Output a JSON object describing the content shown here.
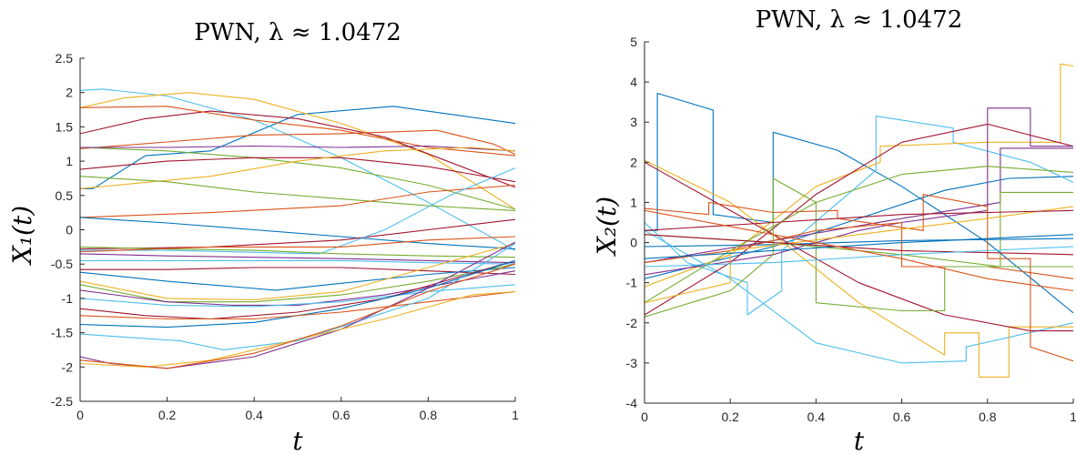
{
  "chart_data": [
    {
      "type": "line",
      "title": "PWN, λ ≈ 1.0472",
      "xlabel": "t",
      "ylabel": "X₁(t)",
      "xlim": [
        0,
        1
      ],
      "ylim": [
        -2.5,
        2.5
      ],
      "xticks": [
        "0",
        "0.2",
        "0.4",
        "0.6",
        "0.8",
        "1"
      ],
      "yticks": [
        "-2.5",
        "-2",
        "-1.5",
        "-1",
        "-0.5",
        "0",
        "0.5",
        "1",
        "1.5",
        "2",
        "2.5"
      ],
      "grid": false,
      "series": [
        {
          "color": "#0072BD",
          "x": [
            0,
            0.03,
            0.15,
            0.3,
            0.5,
            0.72,
            1
          ],
          "y": [
            0.6,
            0.6,
            1.08,
            1.15,
            1.68,
            1.8,
            1.55
          ]
        },
        {
          "color": "#4DBEEE",
          "x": [
            0,
            0.05,
            0.2,
            0.4,
            0.6,
            0.8,
            1
          ],
          "y": [
            2.03,
            2.05,
            1.95,
            1.6,
            1.05,
            0.4,
            -0.3
          ]
        },
        {
          "color": "#EDB120",
          "x": [
            0,
            0.1,
            0.25,
            0.4,
            0.6,
            0.8,
            1
          ],
          "y": [
            1.78,
            1.92,
            2.0,
            1.9,
            1.55,
            1.1,
            0.3
          ]
        },
        {
          "color": "#A2142F",
          "x": [
            0,
            0.15,
            0.3,
            0.5,
            0.7,
            1
          ],
          "y": [
            1.4,
            1.62,
            1.73,
            1.62,
            1.35,
            0.62
          ]
        },
        {
          "color": "#D95319",
          "x": [
            0,
            0.2,
            0.4,
            0.6,
            0.8,
            1
          ],
          "y": [
            1.78,
            1.8,
            1.6,
            1.45,
            1.2,
            1.08
          ]
        },
        {
          "color": "#D95319",
          "x": [
            0,
            0.2,
            0.4,
            0.6,
            0.82,
            0.95,
            1
          ],
          "y": [
            1.18,
            1.28,
            1.38,
            1.4,
            1.45,
            1.25,
            1.1
          ]
        },
        {
          "color": "#77AC30",
          "x": [
            0,
            0.2,
            0.4,
            0.6,
            0.8,
            1
          ],
          "y": [
            1.2,
            1.15,
            1.05,
            0.9,
            0.65,
            0.3
          ]
        },
        {
          "color": "#7E2F8E",
          "x": [
            0,
            0.2,
            0.4,
            0.6,
            0.8,
            1
          ],
          "y": [
            1.2,
            1.2,
            1.22,
            1.2,
            1.22,
            1.15
          ]
        },
        {
          "color": "#A2142F",
          "x": [
            0,
            0.2,
            0.4,
            0.6,
            0.8,
            1
          ],
          "y": [
            0.88,
            1.0,
            1.05,
            1.05,
            0.92,
            0.7
          ]
        },
        {
          "color": "#EDB120",
          "x": [
            0,
            0.3,
            0.5,
            0.7,
            0.9,
            1
          ],
          "y": [
            0.6,
            0.78,
            1.0,
            1.15,
            1.2,
            1.15
          ]
        },
        {
          "color": "#77AC30",
          "x": [
            0,
            0.2,
            0.4,
            0.6,
            0.8,
            1
          ],
          "y": [
            0.78,
            0.7,
            0.55,
            0.45,
            0.35,
            0.28
          ]
        },
        {
          "color": "#D95319",
          "x": [
            0,
            0.3,
            0.6,
            0.8,
            1
          ],
          "y": [
            0.18,
            0.25,
            0.35,
            0.55,
            0.65
          ]
        },
        {
          "color": "#0072BD",
          "x": [
            0,
            0.2,
            0.4,
            0.6,
            0.8,
            1
          ],
          "y": [
            0.18,
            0.1,
            0.0,
            -0.1,
            -0.2,
            -0.28
          ]
        },
        {
          "color": "#A2142F",
          "x": [
            0,
            0.3,
            0.6,
            0.8,
            1
          ],
          "y": [
            -0.28,
            -0.25,
            -0.15,
            0.0,
            0.15
          ]
        },
        {
          "color": "#4DBEEE",
          "x": [
            0,
            0.2,
            0.55,
            0.7,
            0.85,
            1
          ],
          "y": [
            -0.3,
            -0.3,
            -0.35,
            0.0,
            0.5,
            0.9
          ]
        },
        {
          "color": "#77AC30",
          "x": [
            0,
            0.2,
            0.4,
            0.6,
            0.8,
            1
          ],
          "y": [
            -0.25,
            -0.28,
            -0.3,
            -0.35,
            -0.38,
            -0.4
          ]
        },
        {
          "color": "#D95319",
          "x": [
            0,
            0.3,
            0.6,
            0.8,
            1
          ],
          "y": [
            -0.32,
            -0.25,
            -0.25,
            -0.15,
            -0.1
          ]
        },
        {
          "color": "#7E2F8E",
          "x": [
            0,
            0.2,
            0.4,
            0.6,
            0.8,
            1
          ],
          "y": [
            -0.35,
            -0.38,
            -0.4,
            -0.42,
            -0.45,
            -0.48
          ]
        },
        {
          "color": "#4DBEEE",
          "x": [
            0,
            0.3,
            0.6,
            0.8,
            1
          ],
          "y": [
            -0.45,
            -0.45,
            -0.45,
            -0.48,
            -0.5
          ]
        },
        {
          "color": "#A2142F",
          "x": [
            0,
            0.2,
            0.4,
            0.6,
            0.8,
            1
          ],
          "y": [
            -0.58,
            -0.58,
            -0.55,
            -0.55,
            -0.6,
            -0.65
          ]
        },
        {
          "color": "#0072BD",
          "x": [
            0,
            0.2,
            0.45,
            0.6,
            0.8,
            1
          ],
          "y": [
            -0.62,
            -0.75,
            -0.88,
            -0.78,
            -0.65,
            -0.55
          ]
        },
        {
          "color": "#EDB120",
          "x": [
            0,
            0.2,
            0.4,
            0.6,
            0.8,
            1
          ],
          "y": [
            -0.75,
            -1.0,
            -1.02,
            -0.9,
            -0.55,
            -0.2
          ]
        },
        {
          "color": "#77AC30",
          "x": [
            0,
            0.2,
            0.4,
            0.6,
            0.8,
            1
          ],
          "y": [
            -0.8,
            -1.05,
            -1.05,
            -0.95,
            -0.75,
            -0.5
          ]
        },
        {
          "color": "#7E2F8E",
          "x": [
            0,
            0.2,
            0.35,
            0.5,
            0.7,
            1
          ],
          "y": [
            -0.88,
            -1.05,
            -1.1,
            -1.1,
            -0.95,
            -0.6
          ]
        },
        {
          "color": "#4DBEEE",
          "x": [
            0,
            0.2,
            0.4,
            0.6,
            0.8,
            1
          ],
          "y": [
            -1.0,
            -1.1,
            -1.12,
            -1.05,
            -0.9,
            -0.8
          ]
        },
        {
          "color": "#A2142F",
          "x": [
            0,
            0.15,
            0.3,
            0.5,
            0.7,
            1
          ],
          "y": [
            -1.15,
            -1.25,
            -1.3,
            -1.2,
            -1.0,
            -0.45
          ]
        },
        {
          "color": "#0072BD",
          "x": [
            0,
            0.2,
            0.4,
            0.6,
            0.8,
            1
          ],
          "y": [
            -1.38,
            -1.42,
            -1.35,
            -1.15,
            -0.85,
            -0.45
          ]
        },
        {
          "color": "#D95319",
          "x": [
            0,
            0.2,
            0.4,
            0.6,
            0.8,
            1
          ],
          "y": [
            -1.25,
            -1.3,
            -1.3,
            -1.2,
            -1.05,
            -0.9
          ]
        },
        {
          "color": "#4DBEEE",
          "x": [
            0,
            0.23,
            0.33,
            0.5,
            0.8,
            1
          ],
          "y": [
            -1.52,
            -1.62,
            -1.75,
            -1.62,
            -1.0,
            -0.2
          ]
        },
        {
          "color": "#7E2F8E",
          "x": [
            0,
            0.07,
            0.2,
            0.4,
            0.6,
            0.8,
            1
          ],
          "y": [
            -1.85,
            -1.95,
            -2.02,
            -1.85,
            -1.45,
            -0.85,
            -0.18
          ]
        },
        {
          "color": "#EDB120",
          "x": [
            0,
            0.15,
            0.3,
            0.5,
            0.7,
            0.9,
            1
          ],
          "y": [
            -1.95,
            -2.0,
            -1.9,
            -1.6,
            -1.3,
            -0.95,
            -0.9
          ]
        },
        {
          "color": "#D95319",
          "x": [
            0,
            0.2,
            0.4,
            0.6,
            0.8,
            1
          ],
          "y": [
            -1.9,
            -2.02,
            -1.8,
            -1.4,
            -0.9,
            -0.5
          ]
        }
      ]
    },
    {
      "type": "line",
      "title": "PWN, λ ≈ 1.0472",
      "xlabel": "t",
      "ylabel": "X₂(t)",
      "xlim": [
        0,
        1
      ],
      "ylim": [
        -4,
        5
      ],
      "xticks": [
        "0",
        "0.2",
        "0.4",
        "0.6",
        "0.8",
        "1"
      ],
      "yticks": [
        "-4",
        "-3",
        "-2",
        "-1",
        "0",
        "1",
        "2",
        "3",
        "4",
        "5"
      ],
      "grid": false,
      "series": [
        {
          "color": "#0072BD",
          "x": [
            0,
            0.03,
            0.03,
            0.16,
            0.16,
            0.3,
            0.3,
            0.45,
            0.6,
            0.8,
            1
          ],
          "y": [
            0.3,
            0.3,
            3.72,
            3.3,
            0.7,
            0.5,
            2.75,
            2.3,
            1.4,
            0.0,
            -1.75
          ]
        },
        {
          "color": "#0072BD",
          "x": [
            0,
            0.3,
            0.5,
            0.7,
            0.85,
            1
          ],
          "y": [
            -0.9,
            -0.1,
            0.6,
            1.3,
            1.6,
            1.65
          ]
        },
        {
          "color": "#0072BD",
          "x": [
            0,
            0.3,
            0.6,
            1
          ],
          "y": [
            -0.1,
            -0.05,
            0.05,
            0.1
          ]
        },
        {
          "color": "#4DBEEE",
          "x": [
            0,
            0.1,
            0.24,
            0.24,
            0.32,
            0.32,
            0.54,
            0.54,
            0.72,
            0.72,
            0.9,
            1
          ],
          "y": [
            0.5,
            -0.5,
            -1.0,
            -1.8,
            -1.2,
            -0.2,
            1.8,
            3.15,
            2.85,
            2.5,
            2.0,
            1.5
          ]
        },
        {
          "color": "#4DBEEE",
          "x": [
            0,
            0.2,
            0.4,
            0.6,
            0.75,
            0.75,
            1
          ],
          "y": [
            0.3,
            -0.9,
            -2.5,
            -3.0,
            -2.95,
            -2.6,
            -2.0
          ]
        },
        {
          "color": "#EDB120",
          "x": [
            0,
            0.2,
            0.3,
            0.5,
            0.7,
            0.7,
            0.78,
            0.78,
            0.85,
            0.85,
            1
          ],
          "y": [
            2.05,
            1.0,
            0.2,
            -1.5,
            -2.8,
            -2.25,
            -2.25,
            -3.35,
            -3.35,
            -2.1,
            -2.1
          ]
        },
        {
          "color": "#EDB120",
          "x": [
            0,
            0.2,
            0.4,
            0.55,
            0.55,
            0.8,
            0.97,
            0.97,
            1
          ],
          "y": [
            -1.1,
            -0.3,
            1.4,
            2.0,
            2.4,
            2.5,
            2.5,
            4.45,
            4.4
          ]
        },
        {
          "color": "#A2142F",
          "x": [
            0,
            0.2,
            0.4,
            0.6,
            0.8,
            1
          ],
          "y": [
            -1.8,
            -0.5,
            1.2,
            2.5,
            2.95,
            2.4
          ]
        },
        {
          "color": "#A2142F",
          "x": [
            0,
            0.15,
            0.3,
            0.5,
            0.7,
            0.9,
            1
          ],
          "y": [
            2.0,
            1.1,
            0.2,
            -1.0,
            -1.8,
            -2.2,
            -2.2
          ]
        },
        {
          "color": "#7E2F8E",
          "x": [
            0,
            0.3,
            0.5,
            0.6,
            0.8,
            0.8,
            0.9,
            0.9,
            1
          ],
          "y": [
            -0.8,
            -0.3,
            0.3,
            0.5,
            0.8,
            3.35,
            3.35,
            2.4,
            2.4
          ]
        },
        {
          "color": "#7E2F8E",
          "x": [
            0,
            0.3,
            0.6,
            0.83,
            0.83,
            1
          ],
          "y": [
            -0.5,
            0.05,
            0.6,
            1.0,
            2.35,
            2.35
          ]
        },
        {
          "color": "#D95319",
          "x": [
            0,
            0.15,
            0.15,
            0.3,
            0.45,
            0.45,
            0.65,
            0.65,
            0.8,
            0.8,
            0.9,
            0.9,
            1
          ],
          "y": [
            0.85,
            0.7,
            1.0,
            0.75,
            0.8,
            0.6,
            0.3,
            1.2,
            0.9,
            -0.4,
            -0.4,
            -2.6,
            -2.95
          ]
        },
        {
          "color": "#D95319",
          "x": [
            0,
            0.2,
            0.4,
            0.6,
            0.6,
            0.8,
            1
          ],
          "y": [
            -0.5,
            -0.2,
            0.3,
            0.5,
            -0.6,
            -0.6,
            -0.9
          ]
        },
        {
          "color": "#77AC30",
          "x": [
            0,
            0.2,
            0.3,
            0.3,
            0.4,
            0.4,
            0.6,
            0.7,
            0.7,
            1
          ],
          "y": [
            -1.85,
            -1.2,
            -0.3,
            1.6,
            1.0,
            -1.5,
            -1.7,
            -1.7,
            -0.6,
            -0.6
          ]
        },
        {
          "color": "#77AC30",
          "x": [
            0,
            0.2,
            0.4,
            0.6,
            0.8,
            1
          ],
          "y": [
            -1.5,
            -0.2,
            1.0,
            1.7,
            1.9,
            1.75
          ]
        },
        {
          "color": "#77AC30",
          "x": [
            0,
            0.3,
            0.6,
            0.83,
            0.83,
            1
          ],
          "y": [
            0.2,
            0.0,
            -0.3,
            -0.6,
            1.25,
            1.25
          ]
        },
        {
          "color": "#EDB120",
          "x": [
            0,
            0.2,
            0.2,
            0.5,
            0.8,
            1
          ],
          "y": [
            -1.5,
            -1.0,
            -0.2,
            0.2,
            0.6,
            0.9
          ]
        },
        {
          "color": "#A2142F",
          "x": [
            0,
            0.3,
            0.6,
            1
          ],
          "y": [
            0.3,
            0.5,
            0.7,
            0.8
          ]
        },
        {
          "color": "#0072BD",
          "x": [
            0,
            0.3,
            0.6,
            1
          ],
          "y": [
            -0.4,
            -0.2,
            0.0,
            0.2
          ]
        },
        {
          "color": "#A2142F",
          "x": [
            0,
            0.3,
            0.6,
            1
          ],
          "y": [
            0.2,
            0.0,
            -0.2,
            -0.3
          ]
        },
        {
          "color": "#4DBEEE",
          "x": [
            0,
            0.3,
            0.6,
            1
          ],
          "y": [
            -0.6,
            -0.5,
            -0.3,
            -0.1
          ]
        },
        {
          "color": "#D95319",
          "x": [
            0,
            0.2,
            0.4,
            0.6,
            0.8,
            1
          ],
          "y": [
            0.8,
            0.4,
            0.0,
            -0.4,
            -0.9,
            -1.2
          ]
        }
      ]
    }
  ]
}
